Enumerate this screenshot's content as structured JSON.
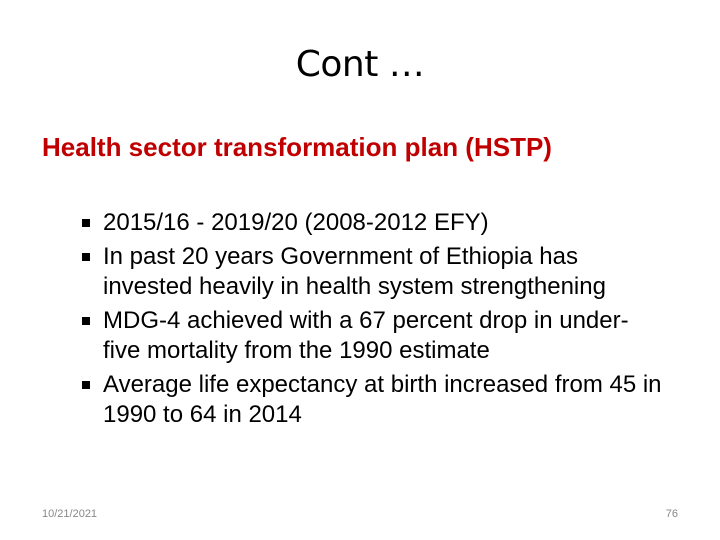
{
  "header": {
    "title": "Cont …",
    "subtitle": "Health sector transformation plan (HSTP)"
  },
  "bullets": [
    "2015/16 - 2019/20 (2008-2012 EFY)",
    "In past 20 years Government of Ethiopia has invested heavily in health system strengthening",
    "MDG-4 achieved with a 67 percent drop in under-five mortality from the 1990 estimate",
    "Average life expectancy at birth increased from 45 in 1990 to 64 in 2014"
  ],
  "footer": {
    "date": "10/21/2021",
    "page": "76"
  }
}
